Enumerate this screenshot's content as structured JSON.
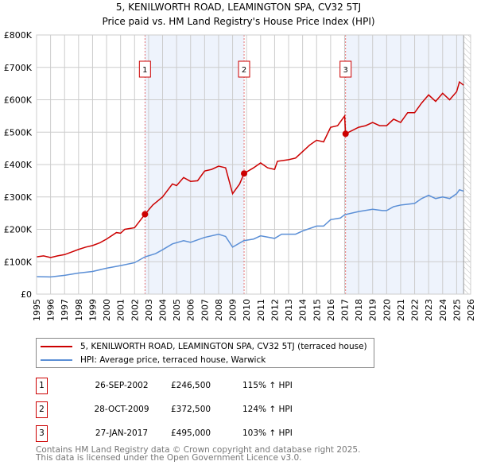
{
  "chart_data": {
    "type": "line",
    "title": "5, KENILWORTH ROAD, LEAMINGTON SPA, CV32 5TJ",
    "subtitle": "Price paid vs. HM Land Registry's House Price Index (HPI)",
    "xlim": [
      1995,
      2026
    ],
    "ylim": [
      0,
      800000
    ],
    "x_ticks": [
      "1995",
      "1996",
      "1997",
      "1998",
      "1999",
      "2000",
      "2001",
      "2002",
      "2003",
      "2004",
      "2005",
      "2006",
      "2007",
      "2008",
      "2009",
      "2010",
      "2011",
      "2012",
      "2013",
      "2014",
      "2015",
      "2016",
      "2017",
      "2018",
      "2019",
      "2020",
      "2021",
      "2022",
      "2023",
      "2024",
      "2025",
      "2026"
    ],
    "y_ticks": [
      {
        "v": 0,
        "label": "£0"
      },
      {
        "v": 100000,
        "label": "£100K"
      },
      {
        "v": 200000,
        "label": "£200K"
      },
      {
        "v": 300000,
        "label": "£300K"
      },
      {
        "v": 400000,
        "label": "£400K"
      },
      {
        "v": 500000,
        "label": "£500K"
      },
      {
        "v": 600000,
        "label": "£600K"
      },
      {
        "v": 700000,
        "label": "£700K"
      },
      {
        "v": 800000,
        "label": "£800K"
      }
    ],
    "grid": true,
    "data_end": 2025.5,
    "series": [
      {
        "name": "5, KENILWORTH ROAD, LEAMINGTON SPA, CV32 5TJ (terraced house)",
        "color": "#cc0000",
        "x": [
          1995,
          1995.5,
          1996,
          1996.5,
          1997,
          1997.5,
          1998,
          1998.5,
          1999,
          1999.5,
          2000,
          2000.7,
          2001,
          2001.3,
          2002,
          2002.74,
          2003.3,
          2004,
          2004.7,
          2005,
          2005.5,
          2006,
          2006.5,
          2007,
          2007.5,
          2008,
          2008.5,
          2009,
          2009.5,
          2009.82,
          2010.5,
          2011,
          2011.5,
          2012,
          2012.2,
          2013,
          2013.5,
          2014,
          2014.5,
          2015,
          2015.5,
          2016,
          2016.5,
          2017,
          2017.07,
          2018,
          2018.5,
          2019,
          2019.5,
          2020,
          2020.5,
          2021,
          2021.5,
          2022,
          2022.5,
          2023,
          2023.5,
          2024,
          2024.5,
          2025,
          2025.2,
          2025.5
        ],
        "y": [
          115000,
          118000,
          113000,
          118000,
          122000,
          130000,
          138000,
          145000,
          150000,
          158000,
          170000,
          190000,
          188000,
          200000,
          205000,
          246500,
          275000,
          300000,
          340000,
          335000,
          360000,
          348000,
          350000,
          380000,
          385000,
          395000,
          390000,
          310000,
          340000,
          372500,
          390000,
          405000,
          390000,
          385000,
          410000,
          415000,
          420000,
          440000,
          460000,
          475000,
          470000,
          515000,
          520000,
          550000,
          495000,
          515000,
          520000,
          530000,
          520000,
          520000,
          540000,
          530000,
          560000,
          560000,
          590000,
          615000,
          595000,
          620000,
          600000,
          625000,
          655000,
          645000
        ]
      },
      {
        "name": "HPI: Average price, terraced house, Warwick",
        "color": "#5b8fd6",
        "x": [
          1995,
          1996,
          1997,
          1998,
          1999,
          2000,
          2001,
          2002,
          2002.74,
          2003.5,
          2004,
          2004.7,
          2005.5,
          2006,
          2007,
          2008,
          2008.5,
          2009,
          2009.8,
          2010.5,
          2011,
          2012,
          2012.5,
          2013.5,
          2014,
          2015,
          2015.5,
          2016,
          2016.7,
          2017,
          2018,
          2019,
          2019.7,
          2020,
          2020.5,
          2021,
          2022,
          2022.5,
          2023,
          2023.5,
          2024,
          2024.5,
          2025,
          2025.2,
          2025.5
        ],
        "y": [
          54000,
          53000,
          58000,
          65000,
          70000,
          80000,
          88000,
          97000,
          115000,
          125000,
          137000,
          155000,
          165000,
          160000,
          175000,
          185000,
          178000,
          145000,
          165000,
          170000,
          180000,
          172000,
          185000,
          185000,
          195000,
          210000,
          210000,
          230000,
          235000,
          245000,
          255000,
          262000,
          258000,
          258000,
          270000,
          275000,
          280000,
          295000,
          305000,
          295000,
          300000,
          295000,
          310000,
          322000,
          318000
        ]
      }
    ],
    "sales": [
      {
        "label": "1",
        "x": 2002.74,
        "price": 246500,
        "date": "26-SEP-2002",
        "price_text": "£246,500",
        "hpi_text": "115% ↑ HPI"
      },
      {
        "label": "2",
        "x": 2009.82,
        "price": 372500,
        "date": "28-OCT-2009",
        "price_text": "£372,500",
        "hpi_text": "124% ↑ HPI"
      },
      {
        "label": "3",
        "x": 2017.07,
        "price": 495000,
        "date": "27-JAN-2017",
        "price_text": "£495,000",
        "hpi_text": "103% ↑ HPI"
      }
    ]
  },
  "footer": {
    "line1": "Contains HM Land Registry data © Crown copyright and database right 2025.",
    "line2": "This data is licensed under the Open Government Licence v3.0."
  }
}
